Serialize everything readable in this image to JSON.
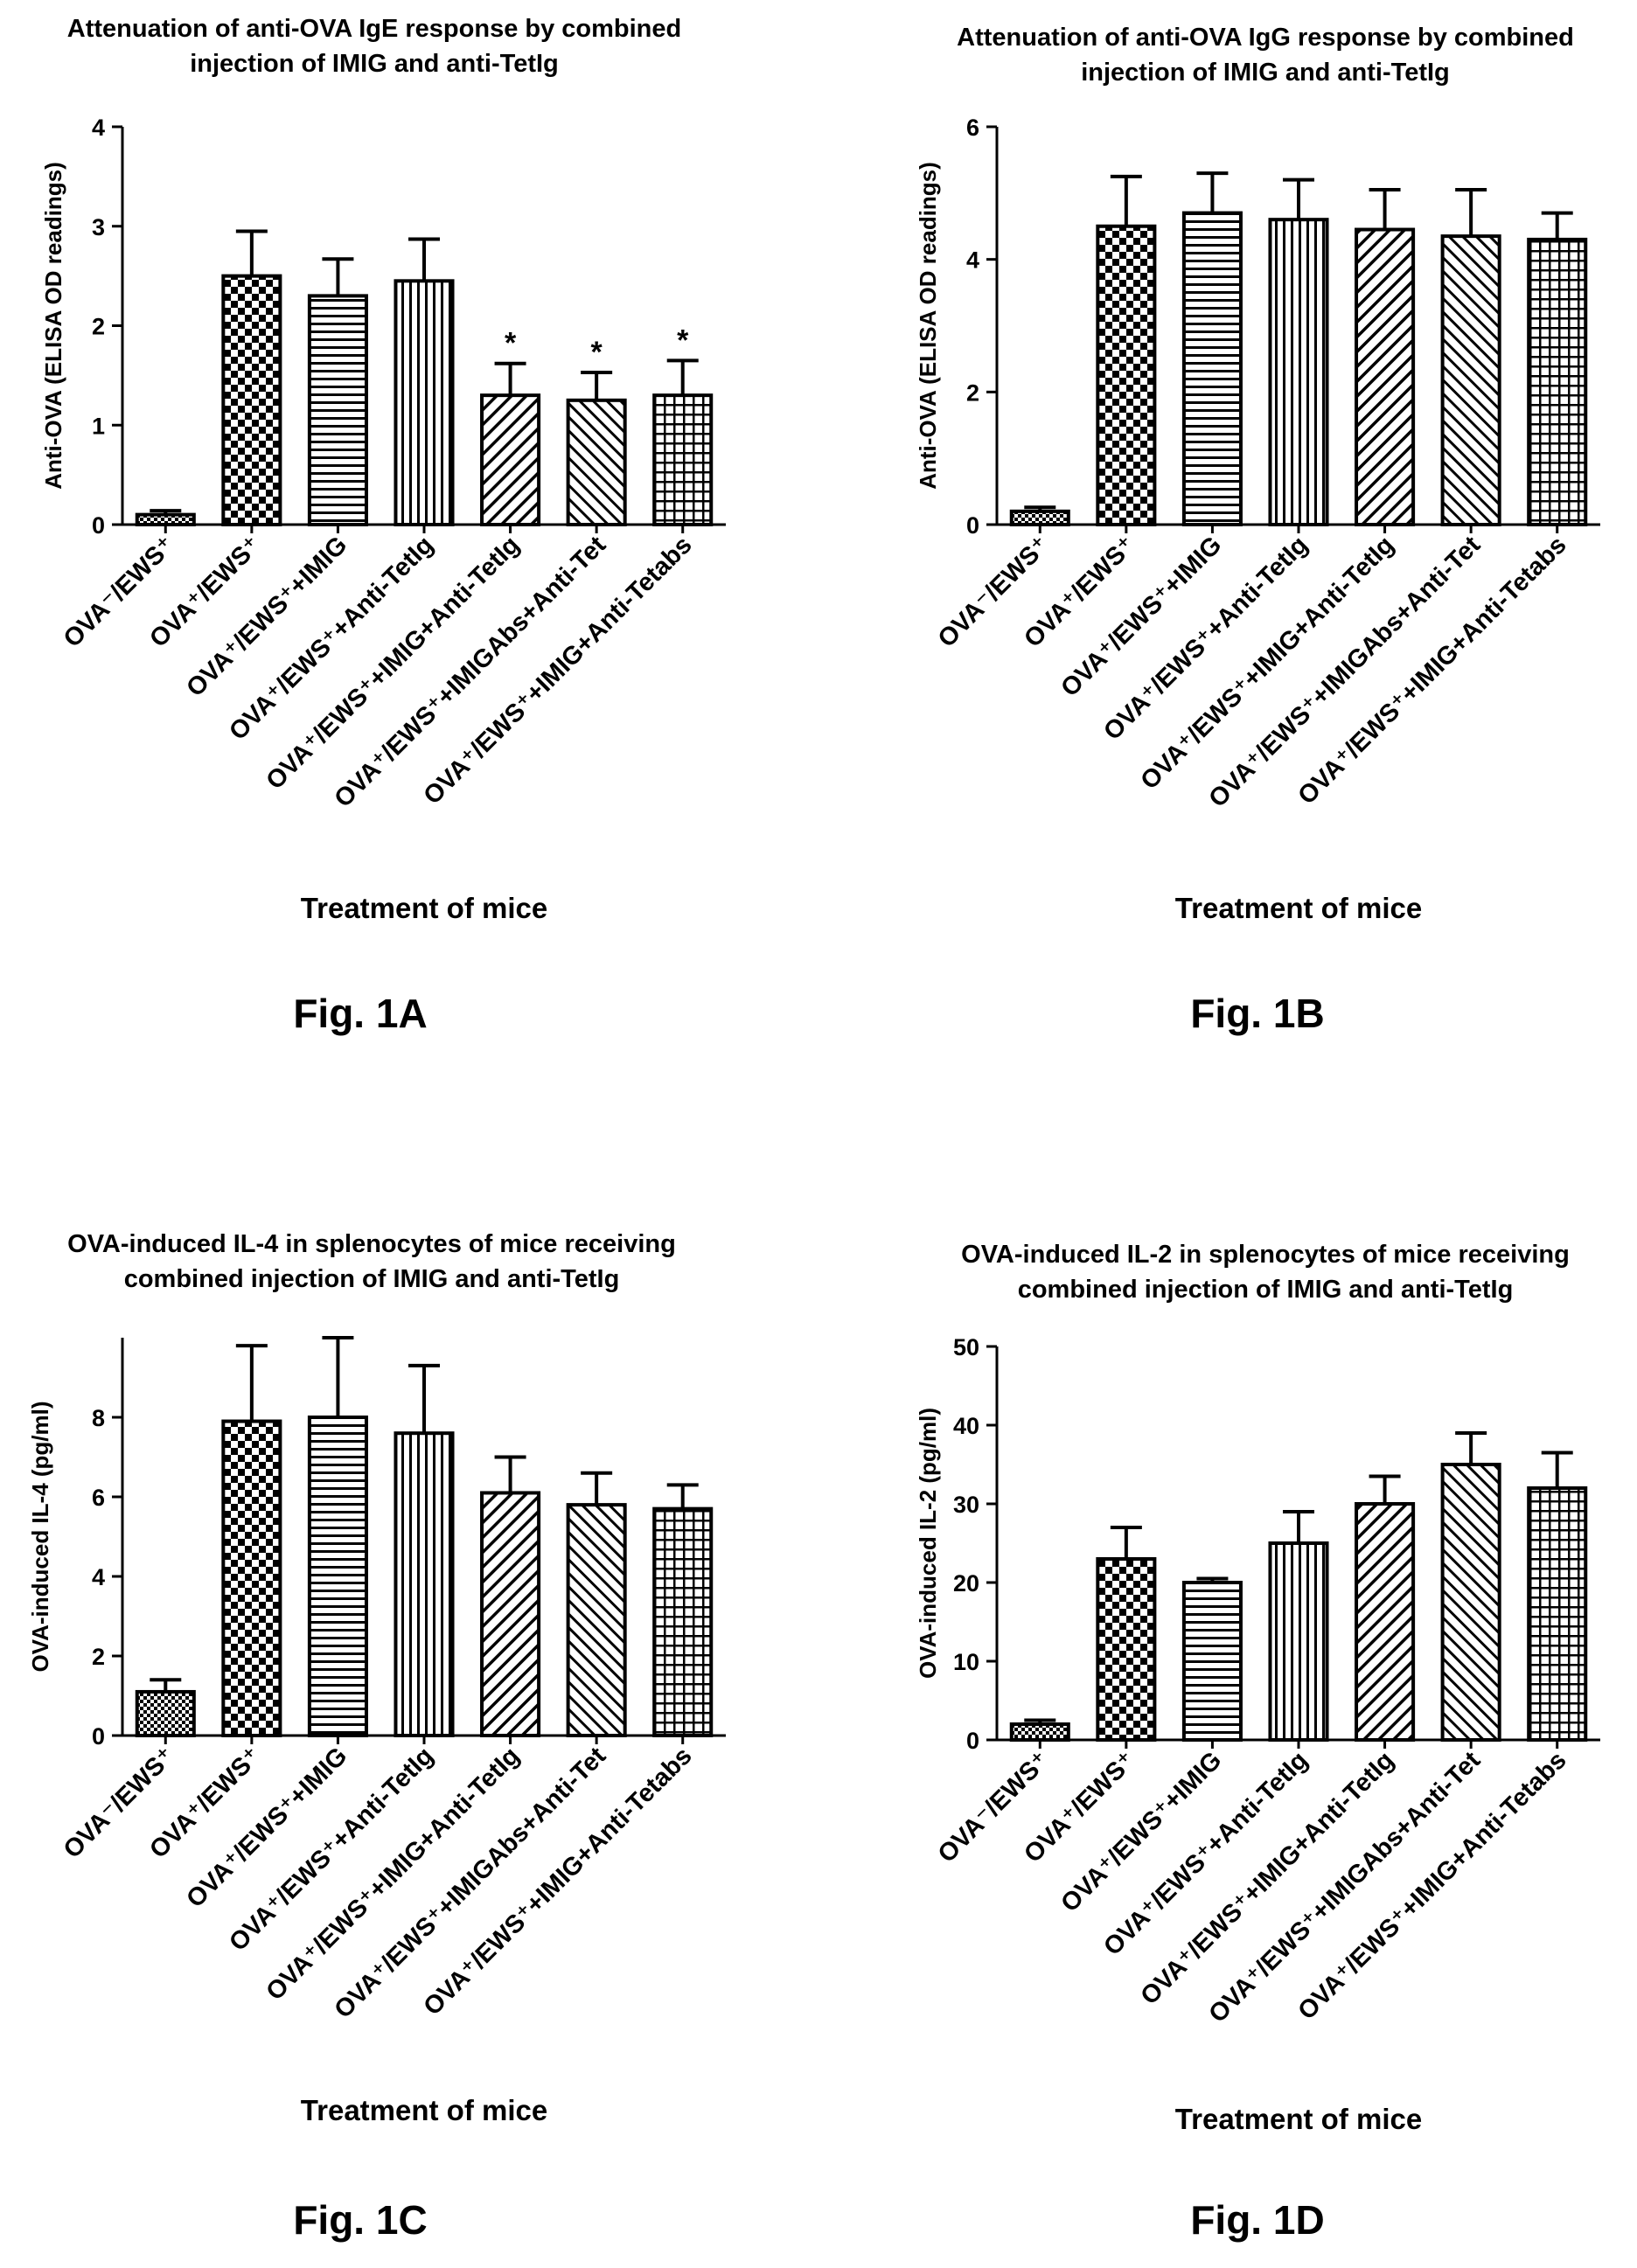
{
  "figures": [
    {
      "caption": "Fig. 1A",
      "chart_data": {
        "type": "bar",
        "title": "Attenuation of anti-OVA IgE response by combined injection of IMIG and anti-TetIg",
        "title_lines": [
          "Attenuation of anti-OVA IgE response by combined",
          "injection of IMIG and anti-TetIg"
        ],
        "xlabel": "Treatment of mice",
        "ylabel": "Anti-OVA (ELISA OD readings)",
        "ylim": [
          0,
          4
        ],
        "yticks": [
          0,
          1,
          2,
          3,
          4
        ],
        "grid": false,
        "categories": [
          "OVA⁻/EWS⁺",
          "OVA⁺/EWS⁺",
          "OVA⁺/EWS⁺+IMIG",
          "OVA⁺/EWS⁺+Anti-TetIg",
          "OVA⁺/EWS⁺+IMIG+Anti-TetIg",
          "OVA⁺/EWS⁺+IMIGAbs+Anti-Tet",
          "OVA⁺/EWS⁺+IMIG+Anti-Tetabs"
        ],
        "values": [
          0.1,
          2.5,
          2.3,
          2.45,
          1.3,
          1.25,
          1.3
        ],
        "errors": [
          0.04,
          0.45,
          0.37,
          0.42,
          0.32,
          0.28,
          0.35
        ],
        "annotations": [
          "",
          "",
          "",
          "",
          "*",
          "*",
          "*"
        ]
      }
    },
    {
      "caption": "Fig. 1B",
      "chart_data": {
        "type": "bar",
        "title": "Attenuation of anti-OVA IgG response by combined injection of IMIG and anti-TetIg",
        "title_lines": [
          "Attenuation of anti-OVA IgG response by combined",
          "injection of IMIG and anti-TetIg"
        ],
        "xlabel": "Treatment of mice",
        "ylabel": "Anti-OVA (ELISA OD readings)",
        "ylim": [
          0,
          6
        ],
        "yticks": [
          0,
          2,
          4,
          6
        ],
        "grid": false,
        "categories": [
          "OVA⁻/EWS⁺",
          "OVA⁺/EWS⁺",
          "OVA⁺/EWS⁺+IMIG",
          "OVA⁺/EWS⁺+Anti-TetIg",
          "OVA⁺/EWS⁺+IMIG+Anti-TetIg",
          "OVA⁺/EWS⁺+IMIGAbs+Anti-Tet",
          "OVA⁺/EWS⁺+IMIG+Anti-Tetabs"
        ],
        "values": [
          0.2,
          4.5,
          4.7,
          4.6,
          4.45,
          4.35,
          4.3
        ],
        "errors": [
          0.06,
          0.75,
          0.6,
          0.6,
          0.6,
          0.7,
          0.4
        ],
        "annotations": [
          "",
          "",
          "",
          "",
          "",
          "",
          ""
        ]
      }
    },
    {
      "caption": "Fig. 1C",
      "chart_data": {
        "type": "bar",
        "title": "OVA-induced IL-4 in splenocytes of mice receiving combined injection of IMIG and anti-TetIg",
        "title_lines": [
          "OVA-induced IL-4 in splenocytes of mice receiving",
          "combined injection of IMIG and anti-TetIg"
        ],
        "xlabel": "Treatment of mice",
        "ylabel": "OVA-induced IL-4 (pg/ml)",
        "ylim": [
          0,
          10
        ],
        "yticks": [
          0,
          2,
          4,
          6,
          8
        ],
        "grid": false,
        "categories": [
          "OVA⁻/EWS⁺",
          "OVA⁺/EWS⁺",
          "OVA⁺/EWS⁺+IMIG",
          "OVA⁺/EWS⁺+Anti-TetIg",
          "OVA⁺/EWS⁺+IMIG+Anti-TetIg",
          "OVA⁺/EWS⁺+IMIGAbs+Anti-Tet",
          "OVA⁺/EWS⁺+IMIG+Anti-Tetabs"
        ],
        "values": [
          1.1,
          7.9,
          8.0,
          7.6,
          6.1,
          5.8,
          5.7
        ],
        "errors": [
          0.3,
          1.9,
          2.0,
          1.7,
          0.9,
          0.8,
          0.6
        ],
        "annotations": [
          "",
          "",
          "",
          "",
          "",
          "",
          ""
        ]
      }
    },
    {
      "caption": "Fig. 1D",
      "chart_data": {
        "type": "bar",
        "title": "OVA-induced IL-2 in splenocytes of mice receiving combined injection of IMIG and anti-TetIg",
        "title_lines": [
          "OVA-induced IL-2 in splenocytes of mice receiving",
          "combined injection of IMIG and anti-TetIg"
        ],
        "xlabel": "Treatment of mice",
        "ylabel": "OVA-induced IL-2 (pg/ml)",
        "ylim": [
          0,
          50
        ],
        "yticks": [
          0,
          10,
          20,
          30,
          40,
          50
        ],
        "grid": false,
        "categories": [
          "OVA⁻/EWS⁺",
          "OVA⁺/EWS⁺",
          "OVA⁺/EWS⁺+IMIG",
          "OVA⁺/EWS⁺+Anti-TetIg",
          "OVA⁺/EWS⁺+IMIG+Anti-TetIg",
          "OVA⁺/EWS⁺+IMIGAbs+Anti-Tet",
          "OVA⁺/EWS⁺+IMIG+Anti-Tetabs"
        ],
        "values": [
          2,
          23,
          20,
          25,
          30,
          35,
          32
        ],
        "errors": [
          0.5,
          4,
          0.5,
          4,
          3.5,
          4,
          4.5
        ],
        "annotations": [
          "",
          "",
          "",
          "",
          "",
          "",
          ""
        ]
      }
    }
  ],
  "bar_patterns": [
    "fine-checker",
    "checker",
    "horizontal-lines",
    "vertical-lines",
    "diagonal-up",
    "diagonal-down",
    "grid"
  ]
}
